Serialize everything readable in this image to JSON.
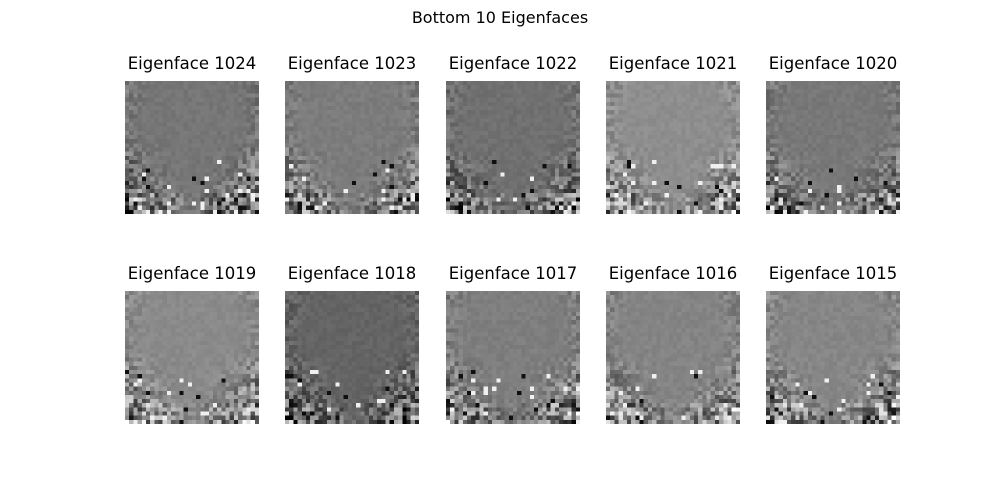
{
  "figure": {
    "title": "Bottom 10 Eigenfaces",
    "colormap": "gray"
  },
  "panels": [
    {
      "title": "Eigenface 1024",
      "background_gray": 118
    },
    {
      "title": "Eigenface 1023",
      "background_gray": 124
    },
    {
      "title": "Eigenface 1022",
      "background_gray": 112
    },
    {
      "title": "Eigenface 1021",
      "background_gray": 142
    },
    {
      "title": "Eigenface 1020",
      "background_gray": 120
    },
    {
      "title": "Eigenface 1019",
      "background_gray": 138
    },
    {
      "title": "Eigenface 1018",
      "background_gray": 100
    },
    {
      "title": "Eigenface 1017",
      "background_gray": 126
    },
    {
      "title": "Eigenface 1016",
      "background_gray": 132
    },
    {
      "title": "Eigenface 1015",
      "background_gray": 134
    }
  ]
}
